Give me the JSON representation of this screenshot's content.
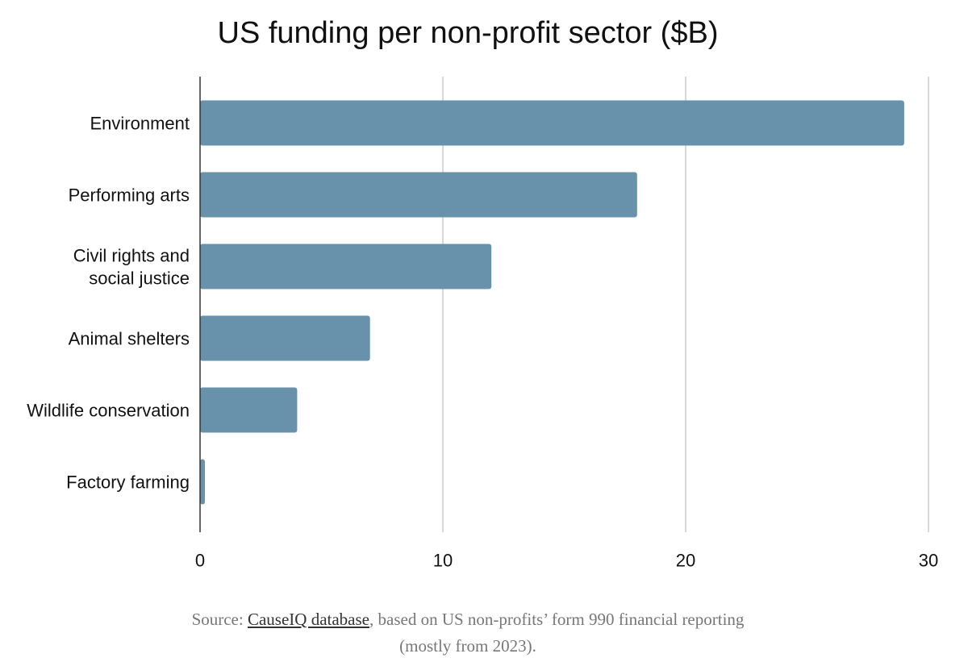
{
  "chart_data": {
    "type": "bar",
    "orientation": "horizontal",
    "title": "US funding per non-profit sector ($B)",
    "categories": [
      "Environment",
      "Performing arts",
      "Civil rights and social justice",
      "Animal shelters",
      "Wildlife conservation",
      "Factory farming"
    ],
    "category_lines": [
      [
        "Environment"
      ],
      [
        "Performing arts"
      ],
      [
        "Civil rights and",
        "social justice"
      ],
      [
        "Animal shelters"
      ],
      [
        "Wildlife conservation"
      ],
      [
        "Factory farming"
      ]
    ],
    "values": [
      29,
      18,
      12,
      7,
      4,
      0.2
    ],
    "xlim": [
      0,
      30
    ],
    "xticks": [
      0,
      10,
      20,
      30
    ],
    "xlabel": "",
    "ylabel": "",
    "grid": true,
    "bar_color": "#6891ac",
    "grid_color": "#cccccc",
    "axis_color": "#333333"
  },
  "source": {
    "prefix": "Source: ",
    "link_text": "CauseIQ database",
    "suffix": ", based on US non-profits’ form 990 financial reporting",
    "line2": "(mostly from 2023)."
  }
}
